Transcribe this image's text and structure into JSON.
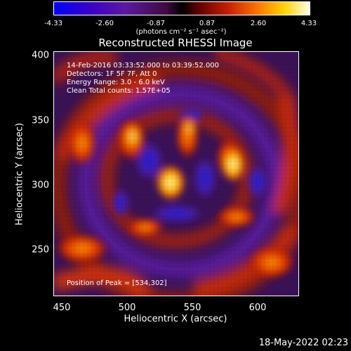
{
  "colorbar": {
    "ticks": [
      "-4.33",
      "-2.60",
      "-0.87",
      "0.87",
      "2.60",
      "4.33"
    ],
    "units": "(photons cm⁻² s⁻¹ asec⁻²)",
    "colors": [
      "#0000ff",
      "#3a00c8",
      "#5a1aa0",
      "#400a40",
      "#000000",
      "#5a0000",
      "#c81e00",
      "#ff7800",
      "#ffd200",
      "#ffffe6"
    ]
  },
  "plot": {
    "title": "Reconstructed RHESSI Image",
    "xlabel": "Heliocentric X (arcsec)",
    "ylabel": "Heliocentric Y (arcsec)",
    "xticks": [
      "450",
      "500",
      "550",
      "600"
    ],
    "yticks": [
      "400",
      "350",
      "300",
      "250"
    ],
    "annotations": {
      "time_range": "14-Feb-2016 03:33:52.000 to 03:39:52.000",
      "detectors": "Detectors: 1F 5F 7F, Att 0",
      "energy": "Energy Range: 3.0 - 6.0 keV",
      "clean": "Clean    Total counts: 1.57E+05",
      "peak": "Position of Peak = [534,302]"
    }
  },
  "footer": {
    "timestamp": "18-May-2022 02:23"
  }
}
